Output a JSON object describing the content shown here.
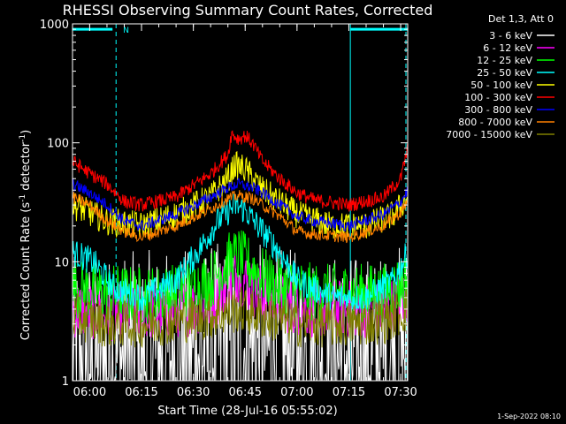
{
  "footer_timestamp": "1-Sep-2022 08:10",
  "chart_data": {
    "type": "line",
    "title": "RHESSI Observing Summary Count Rates, Corrected",
    "xlabel": "Start Time (28-Jul-16 05:55:02)",
    "ylabel_main": "Corrected Count Rate (s",
    "ylabel_sup1": "-1",
    "ylabel_mid": " detector",
    "ylabel_sup2": "-1",
    "ylabel_end": ")",
    "x_unit": "minutes since 05:55:02",
    "xlim": [
      0,
      97
    ],
    "ylim": [
      1,
      1000
    ],
    "yscale": "log",
    "x_ticks": [
      {
        "value": 4.97,
        "label": "06:00"
      },
      {
        "value": 19.97,
        "label": "06:15"
      },
      {
        "value": 34.97,
        "label": "06:30"
      },
      {
        "value": 49.97,
        "label": "06:45"
      },
      {
        "value": 64.97,
        "label": "07:00"
      },
      {
        "value": 79.97,
        "label": "07:15"
      },
      {
        "value": 94.97,
        "label": "07:30"
      }
    ],
    "y_ticks": [
      {
        "value": 1,
        "label": "1"
      },
      {
        "value": 10,
        "label": "10"
      },
      {
        "value": 100,
        "label": "100"
      },
      {
        "value": 1000,
        "label": "1000"
      }
    ],
    "legend_title": "Det 1,3, Att 0",
    "legend_position": "top-right outside",
    "night_marker": {
      "label": "N",
      "x_start": 0,
      "x_end": 12.6,
      "y": 900
    },
    "saa_marker": {
      "x_start": 80.4,
      "x_end": 97,
      "y": 900
    },
    "night_color": "#00ffff",
    "series": [
      {
        "name": "3 - 6 keV",
        "color": "#ffffff",
        "points": [
          [
            0,
            1.4
          ],
          [
            10,
            1.5
          ],
          [
            20,
            1.6
          ],
          [
            30,
            1.6
          ],
          [
            40,
            1.8
          ],
          [
            47,
            2.0
          ],
          [
            55,
            1.8
          ],
          [
            65,
            1.6
          ],
          [
            80,
            1.5
          ],
          [
            90,
            1.5
          ],
          [
            97,
            2.0
          ]
        ]
      },
      {
        "name": "6 - 12 keV",
        "color": "#ff00ff",
        "points": [
          [
            0,
            4.0
          ],
          [
            10,
            3.8
          ],
          [
            20,
            3.8
          ],
          [
            30,
            4.0
          ],
          [
            40,
            4.5
          ],
          [
            46,
            7.0
          ],
          [
            48,
            8.0
          ],
          [
            52,
            6.0
          ],
          [
            60,
            4.5
          ],
          [
            70,
            4.0
          ],
          [
            80,
            4.0
          ],
          [
            90,
            4.0
          ],
          [
            97,
            5.0
          ]
        ]
      },
      {
        "name": "12 - 25 keV",
        "color": "#00ff00",
        "points": [
          [
            0,
            6.0
          ],
          [
            10,
            5.5
          ],
          [
            20,
            5.2
          ],
          [
            30,
            5.5
          ],
          [
            40,
            7.0
          ],
          [
            45,
            10.0
          ],
          [
            48,
            11.0
          ],
          [
            52,
            9.0
          ],
          [
            58,
            6.5
          ],
          [
            70,
            5.5
          ],
          [
            80,
            5.5
          ],
          [
            90,
            5.5
          ],
          [
            97,
            7.0
          ]
        ]
      },
      {
        "name": "25 - 50 keV",
        "color": "#00ffff",
        "points": [
          [
            0,
            12
          ],
          [
            6,
            10
          ],
          [
            12,
            6
          ],
          [
            20,
            5.0
          ],
          [
            30,
            7
          ],
          [
            37,
            13
          ],
          [
            42,
            22
          ],
          [
            47,
            30
          ],
          [
            50,
            27
          ],
          [
            55,
            18
          ],
          [
            60,
            12
          ],
          [
            65,
            7
          ],
          [
            75,
            5.0
          ],
          [
            85,
            5.0
          ],
          [
            93,
            7
          ],
          [
            97,
            12
          ]
        ]
      },
      {
        "name": "50 - 100 keV",
        "color": "#ffff00",
        "points": [
          [
            0,
            30
          ],
          [
            10,
            22
          ],
          [
            20,
            20
          ],
          [
            30,
            25
          ],
          [
            40,
            35
          ],
          [
            45,
            50
          ],
          [
            47,
            65
          ],
          [
            50,
            60
          ],
          [
            55,
            40
          ],
          [
            65,
            25
          ],
          [
            75,
            20
          ],
          [
            85,
            20
          ],
          [
            93,
            25
          ],
          [
            97,
            35
          ]
        ]
      },
      {
        "name": "100 - 300 keV",
        "color": "#ff0000",
        "points": [
          [
            0,
            70
          ],
          [
            5,
            55
          ],
          [
            10,
            45
          ],
          [
            15,
            32
          ],
          [
            20,
            30
          ],
          [
            30,
            35
          ],
          [
            40,
            55
          ],
          [
            45,
            80
          ],
          [
            46,
            120
          ],
          [
            48,
            108
          ],
          [
            50,
            115
          ],
          [
            52,
            100
          ],
          [
            55,
            70
          ],
          [
            60,
            50
          ],
          [
            65,
            38
          ],
          [
            70,
            33
          ],
          [
            80,
            30
          ],
          [
            90,
            35
          ],
          [
            95,
            50
          ],
          [
            97,
            90
          ]
        ]
      },
      {
        "name": "300 - 800 keV",
        "color": "#0000ff",
        "points": [
          [
            0,
            45
          ],
          [
            5,
            38
          ],
          [
            10,
            30
          ],
          [
            15,
            22
          ],
          [
            20,
            20
          ],
          [
            30,
            25
          ],
          [
            40,
            35
          ],
          [
            45,
            42
          ],
          [
            48,
            45
          ],
          [
            52,
            42
          ],
          [
            55,
            38
          ],
          [
            60,
            30
          ],
          [
            65,
            24
          ],
          [
            70,
            22
          ],
          [
            80,
            20
          ],
          [
            90,
            25
          ],
          [
            95,
            32
          ],
          [
            97,
            40
          ]
        ]
      },
      {
        "name": "800 - 7000 keV",
        "color": "#ff8000",
        "points": [
          [
            0,
            35
          ],
          [
            5,
            30
          ],
          [
            10,
            22
          ],
          [
            15,
            18
          ],
          [
            20,
            16
          ],
          [
            30,
            20
          ],
          [
            40,
            28
          ],
          [
            45,
            34
          ],
          [
            48,
            36
          ],
          [
            52,
            34
          ],
          [
            55,
            30
          ],
          [
            60,
            24
          ],
          [
            65,
            18
          ],
          [
            70,
            17
          ],
          [
            80,
            16
          ],
          [
            90,
            20
          ],
          [
            95,
            26
          ],
          [
            97,
            32
          ]
        ]
      },
      {
        "name": "7000 - 15000 keV",
        "color": "#808000",
        "points": [
          [
            0,
            3.5
          ],
          [
            10,
            3.0
          ],
          [
            20,
            3.0
          ],
          [
            30,
            3.2
          ],
          [
            40,
            3.5
          ],
          [
            48,
            4.0
          ],
          [
            55,
            3.5
          ],
          [
            65,
            3.0
          ],
          [
            80,
            3.0
          ],
          [
            90,
            3.2
          ],
          [
            97,
            4.0
          ]
        ]
      }
    ]
  }
}
